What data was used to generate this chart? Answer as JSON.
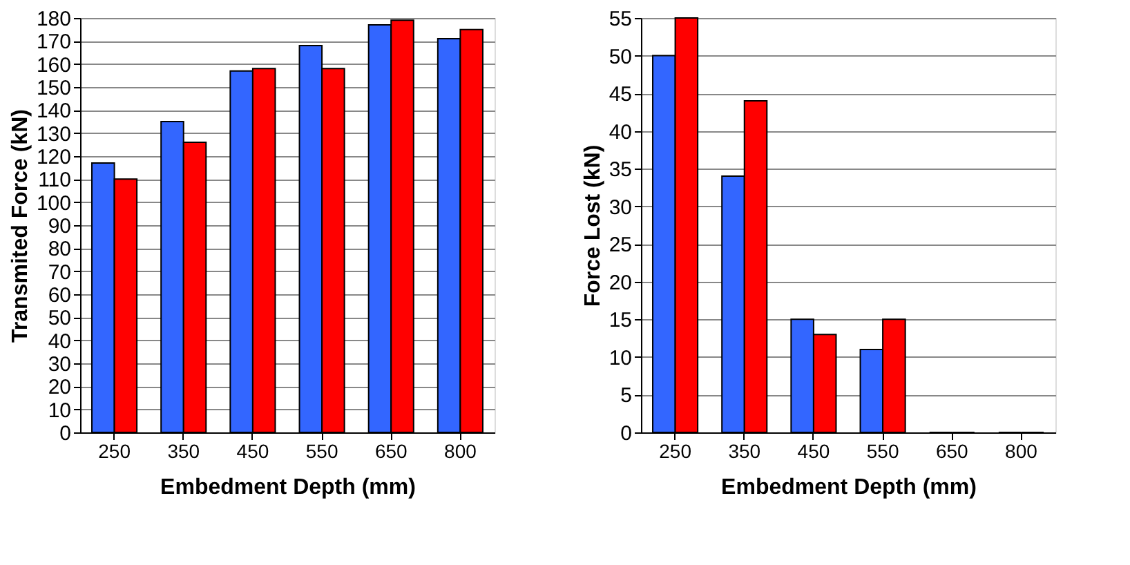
{
  "chart_data": [
    {
      "type": "bar",
      "xlabel": "Embedment Depth (mm)",
      "ylabel": "Transmited Force (kN)",
      "categories": [
        "250",
        "350",
        "450",
        "550",
        "650",
        "800"
      ],
      "series": [
        {
          "color": "#3366ff",
          "values": [
            117,
            135,
            157,
            168,
            177,
            171
          ]
        },
        {
          "color": "#ff0000",
          "values": [
            110,
            126,
            158,
            158,
            179,
            175
          ]
        }
      ],
      "ylim": [
        0,
        180
      ],
      "yticks": [
        0,
        10,
        20,
        30,
        40,
        50,
        60,
        70,
        80,
        90,
        100,
        110,
        120,
        130,
        140,
        150,
        160,
        170,
        180
      ],
      "grid": "y",
      "legend": false
    },
    {
      "type": "bar",
      "xlabel": "Embedment Depth (mm)",
      "ylabel": "Force Lost (kN)",
      "categories": [
        "250",
        "350",
        "450",
        "550",
        "650",
        "800"
      ],
      "series": [
        {
          "color": "#3366ff",
          "values": [
            50,
            34,
            15,
            11,
            0,
            0
          ]
        },
        {
          "color": "#ff0000",
          "values": [
            55,
            44,
            13,
            15,
            0,
            0
          ]
        }
      ],
      "ylim": [
        0,
        55
      ],
      "yticks": [
        0,
        5,
        10,
        15,
        20,
        25,
        30,
        35,
        40,
        45,
        50,
        55
      ],
      "grid": "y",
      "legend": false
    }
  ]
}
